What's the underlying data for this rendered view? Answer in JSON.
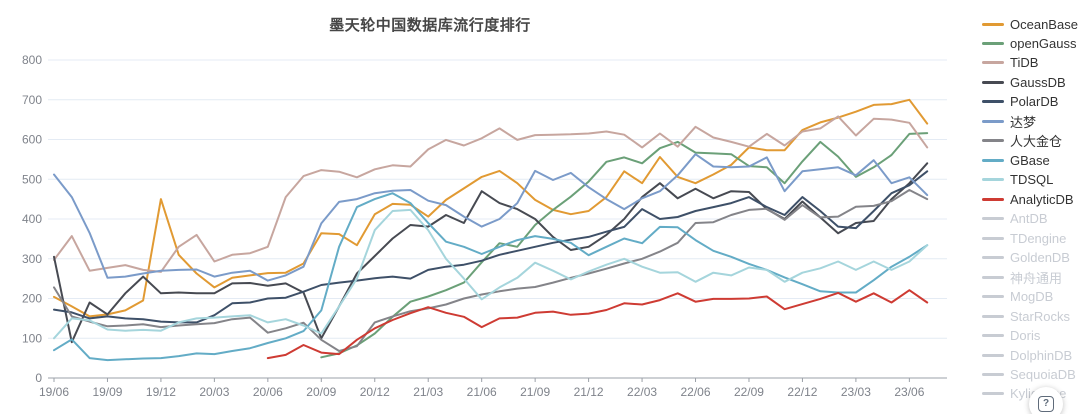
{
  "title": "墨天轮中国数据库流行度排行",
  "help": {
    "glyph": "?"
  },
  "colors": {
    "grid": "#e4ebf4",
    "axis_line": "#9ba0a8",
    "axis_label": "#7f838b",
    "disabled_legend": "#c8ccd3"
  },
  "chart_data": {
    "type": "line",
    "title": "墨天轮中国数据库流行度排行",
    "x_start": "2019/06",
    "x_end": "2023/07",
    "x_interval": "monthly",
    "x_tick_labels": [
      "19/06",
      "19/09",
      "19/12",
      "20/03",
      "20/06",
      "20/09",
      "20/12",
      "21/03",
      "21/06",
      "21/09",
      "21/12",
      "22/03",
      "22/06",
      "22/09",
      "22/12",
      "23/03",
      "23/06"
    ],
    "y_ticks": [
      0,
      100,
      200,
      300,
      400,
      500,
      600,
      700,
      800
    ],
    "ylim": [
      0,
      800
    ],
    "grid": true,
    "legend_position": "right",
    "series": [
      {
        "name": "OceanBase",
        "color": "#e19a33",
        "enabled": true,
        "values": [
          204,
          180,
          155,
          160,
          170,
          195,
          450,
          310,
          263,
          228,
          252,
          258,
          264,
          265,
          288,
          364,
          362,
          334,
          412,
          438,
          436,
          406,
          448,
          477,
          506,
          521,
          490,
          448,
          423,
          412,
          420,
          455,
          520,
          490,
          556,
          506,
          490,
          512,
          536,
          580,
          573,
          573,
          624,
          643,
          655,
          670,
          687,
          689,
          700,
          640
        ]
      },
      {
        "name": "openGauss",
        "color": "#6ba078",
        "enabled": true,
        "values": [
          null,
          null,
          null,
          null,
          null,
          null,
          null,
          null,
          null,
          null,
          null,
          null,
          null,
          null,
          null,
          52,
          62,
          82,
          112,
          154,
          192,
          205,
          221,
          240,
          291,
          339,
          330,
          385,
          423,
          456,
          494,
          544,
          555,
          540,
          578,
          594,
          567,
          565,
          563,
          533,
          530,
          490,
          545,
          594,
          557,
          506,
          530,
          561,
          614,
          616
        ]
      },
      {
        "name": "TiDB",
        "color": "#c7a69f",
        "enabled": true,
        "values": [
          297,
          357,
          270,
          277,
          284,
          272,
          267,
          330,
          360,
          293,
          310,
          314,
          330,
          455,
          508,
          523,
          519,
          505,
          525,
          535,
          532,
          575,
          599,
          585,
          603,
          628,
          599,
          611,
          612,
          613,
          615,
          620,
          612,
          580,
          615,
          582,
          632,
          605,
          594,
          582,
          614,
          585,
          620,
          628,
          658,
          610,
          652,
          650,
          642,
          580
        ]
      },
      {
        "name": "GaussDB",
        "color": "#474a52",
        "enabled": true,
        "values": [
          305,
          90,
          190,
          160,
          213,
          255,
          213,
          215,
          213,
          213,
          238,
          239,
          232,
          238,
          215,
          100,
          180,
          263,
          307,
          351,
          385,
          381,
          410,
          390,
          470,
          440,
          425,
          400,
          355,
          322,
          330,
          360,
          400,
          455,
          490,
          452,
          476,
          452,
          470,
          468,
          425,
          400,
          444,
          404,
          364,
          390,
          395,
          450,
          490,
          540
        ]
      },
      {
        "name": "PolarDB",
        "color": "#3e5068",
        "enabled": true,
        "values": [
          172,
          165,
          150,
          155,
          150,
          148,
          142,
          140,
          140,
          158,
          188,
          190,
          200,
          202,
          217,
          234,
          240,
          245,
          251,
          255,
          250,
          272,
          280,
          285,
          295,
          310,
          320,
          330,
          340,
          348,
          355,
          368,
          380,
          425,
          400,
          405,
          420,
          430,
          440,
          455,
          430,
          410,
          455,
          420,
          381,
          377,
          420,
          465,
          485,
          520
        ]
      },
      {
        "name": "达梦",
        "color": "#7b9bc9",
        "enabled": true,
        "values": [
          512,
          455,
          365,
          252,
          255,
          263,
          270,
          272,
          273,
          255,
          265,
          270,
          245,
          258,
          280,
          389,
          443,
          450,
          465,
          471,
          473,
          446,
          435,
          406,
          381,
          400,
          440,
          521,
          498,
          516,
          480,
          450,
          425,
          452,
          470,
          510,
          563,
          532,
          530,
          532,
          555,
          470,
          520,
          525,
          530,
          510,
          548,
          490,
          505,
          460
        ]
      },
      {
        "name": "人大金仓",
        "color": "#848489",
        "enabled": true,
        "values": [
          228,
          155,
          142,
          130,
          132,
          135,
          128,
          132,
          135,
          138,
          148,
          152,
          114,
          125,
          139,
          96,
          68,
          80,
          140,
          155,
          168,
          175,
          185,
          200,
          210,
          218,
          225,
          229,
          240,
          252,
          263,
          275,
          288,
          300,
          318,
          340,
          390,
          392,
          410,
          423,
          426,
          398,
          435,
          404,
          406,
          431,
          433,
          445,
          473,
          450
        ]
      },
      {
        "name": "GBase",
        "color": "#63acc6",
        "enabled": true,
        "values": [
          70,
          97,
          50,
          45,
          47,
          49,
          50,
          55,
          62,
          60,
          68,
          75,
          88,
          100,
          118,
          170,
          330,
          430,
          450,
          465,
          440,
          390,
          343,
          330,
          312,
          330,
          347,
          357,
          350,
          340,
          309,
          330,
          351,
          339,
          380,
          379,
          347,
          320,
          305,
          287,
          272,
          253,
          236,
          218,
          215,
          215,
          246,
          280,
          305,
          334
        ]
      },
      {
        "name": "TDSQL",
        "color": "#a5d5dc",
        "enabled": true,
        "values": [
          100,
          150,
          145,
          122,
          119,
          121,
          119,
          140,
          150,
          152,
          155,
          158,
          140,
          148,
          132,
          112,
          180,
          250,
          372,
          420,
          423,
          372,
          300,
          250,
          198,
          228,
          252,
          290,
          270,
          248,
          268,
          285,
          300,
          280,
          265,
          266,
          242,
          265,
          258,
          278,
          272,
          242,
          265,
          276,
          293,
          272,
          293,
          272,
          293,
          334
        ]
      },
      {
        "name": "AnalyticDB",
        "color": "#ce3b33",
        "enabled": true,
        "values": [
          null,
          null,
          null,
          null,
          null,
          null,
          null,
          null,
          null,
          null,
          null,
          null,
          50,
          58,
          83,
          64,
          60,
          96,
          125,
          146,
          163,
          178,
          164,
          154,
          128,
          150,
          152,
          164,
          167,
          159,
          162,
          171,
          188,
          185,
          196,
          213,
          192,
          199,
          199,
          200,
          205,
          173,
          186,
          199,
          214,
          192,
          213,
          190,
          221,
          190
        ]
      },
      {
        "name": "AntDB",
        "color": "#c8ccd3",
        "enabled": false,
        "values": []
      },
      {
        "name": "TDengine",
        "color": "#c8ccd3",
        "enabled": false,
        "values": []
      },
      {
        "name": "GoldenDB",
        "color": "#c8ccd3",
        "enabled": false,
        "values": []
      },
      {
        "name": "神舟通用",
        "color": "#c8ccd3",
        "enabled": false,
        "values": []
      },
      {
        "name": "MogDB",
        "color": "#c8ccd3",
        "enabled": false,
        "values": []
      },
      {
        "name": "StarRocks",
        "color": "#c8ccd3",
        "enabled": false,
        "values": []
      },
      {
        "name": "Doris",
        "color": "#c8ccd3",
        "enabled": false,
        "values": []
      },
      {
        "name": "DolphinDB",
        "color": "#c8ccd3",
        "enabled": false,
        "values": []
      },
      {
        "name": "SequoiaDB",
        "color": "#c8ccd3",
        "enabled": false,
        "values": []
      },
      {
        "name": "Kyligence",
        "color": "#c8ccd3",
        "enabled": false,
        "values": []
      }
    ]
  }
}
